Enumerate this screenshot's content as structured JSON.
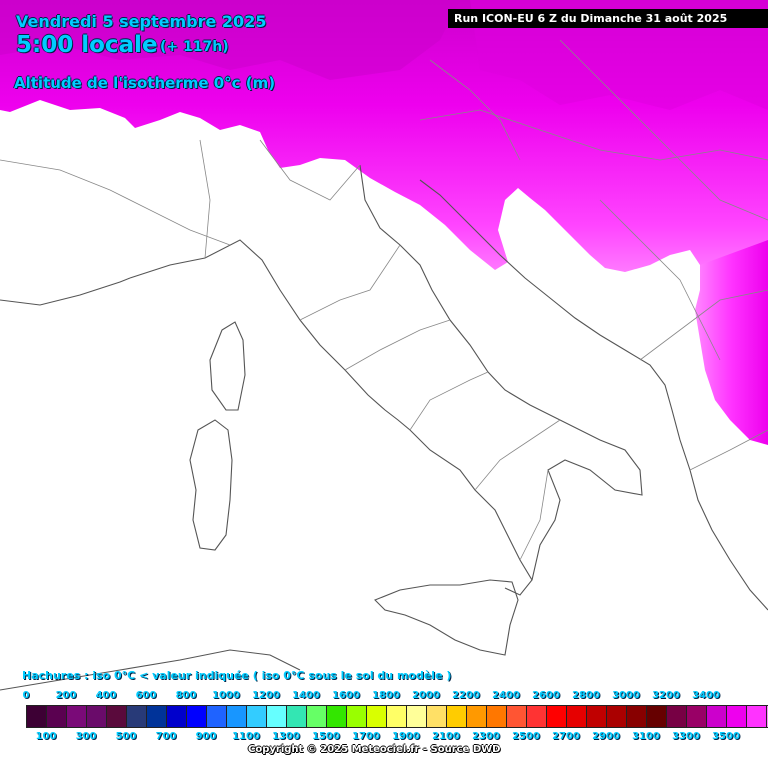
{
  "header": {
    "date": "Vendredi 5 septembre 2025",
    "time": "5:00 locale",
    "offset": "(+ 117h)",
    "parameter": "Altitude de l'isotherme 0°c (m)",
    "run": "Run ICON-EU 6 Z du Dimanche 31 août 2025"
  },
  "legend": {
    "hatch_note": "Hachures : iso 0°C < valeur indiquée ( iso 0°C sous le sol du modèle )",
    "upper_ticks": [
      "0",
      "200",
      "400",
      "600",
      "800",
      "1000",
      "1200",
      "1400",
      "1600",
      "1800",
      "2000",
      "2200",
      "2400",
      "2600",
      "2800",
      "3000",
      "3200",
      "3400"
    ],
    "lower_ticks": [
      "100",
      "300",
      "500",
      "700",
      "900",
      "1100",
      "1300",
      "1500",
      "1700",
      "1900",
      "2100",
      "2300",
      "2500",
      "2700",
      "2900",
      "3100",
      "3300",
      "3500"
    ],
    "colors": [
      "#3d0034",
      "#5a0150",
      "#7a0a78",
      "#6a0b6a",
      "#5a0a3c",
      "#283a78",
      "#003399",
      "#0000cc",
      "#0000ff",
      "#1f63ff",
      "#1896ff",
      "#33ccff",
      "#66ffff",
      "#33e6b3",
      "#66ff66",
      "#33e600",
      "#99ff00",
      "#d9ff00",
      "#ffff66",
      "#ffff99",
      "#ffe066",
      "#ffcc00",
      "#ff9900",
      "#ff7700",
      "#ff5533",
      "#ff3333",
      "#ff0000",
      "#e60000",
      "#c00000",
      "#aa0000",
      "#880000",
      "#660000",
      "#770044",
      "#990066",
      "#cc00cc",
      "#ee00ee",
      "#ff33ff",
      "#ff88ff"
    ]
  },
  "copyright": "Copyright © 2025 Meteociel.fr - Source DWD",
  "map": {
    "field_colors": [
      "#ee00ee",
      "#ff33ff",
      "#ff88ff"
    ]
  }
}
